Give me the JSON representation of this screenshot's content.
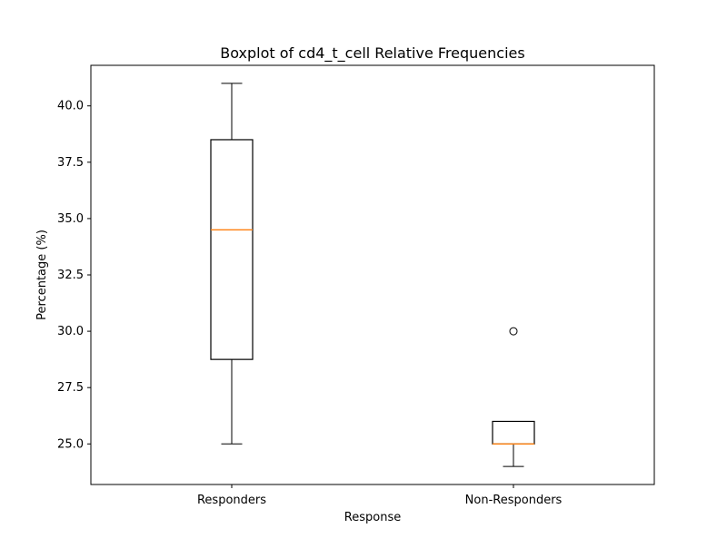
{
  "chart_data": {
    "type": "boxplot",
    "title": "Boxplot of cd4_t_cell Relative Frequencies",
    "xlabel": "Response",
    "ylabel": "Percentage (%)",
    "ylim": [
      23.2,
      41.8
    ],
    "yticks": [
      25.0,
      27.5,
      30.0,
      32.5,
      35.0,
      37.5,
      40.0
    ],
    "ytick_labels": [
      "25.0",
      "27.5",
      "30.0",
      "32.5",
      "35.0",
      "37.5",
      "40.0"
    ],
    "categories": [
      "Responders",
      "Non-Responders"
    ],
    "boxes": [
      {
        "category": "Responders",
        "whisker_low": 25.0,
        "q1": 28.75,
        "median": 34.5,
        "q3": 38.5,
        "whisker_high": 41.0,
        "outliers": []
      },
      {
        "category": "Non-Responders",
        "whisker_low": 24.0,
        "q1": 25.0,
        "median": 25.0,
        "q3": 26.0,
        "whisker_high": 26.0,
        "outliers": [
          30.0
        ]
      }
    ],
    "grid": false,
    "colors": {
      "box": "#000000",
      "median": "#ff7f0e",
      "outlier": "#000000"
    }
  }
}
